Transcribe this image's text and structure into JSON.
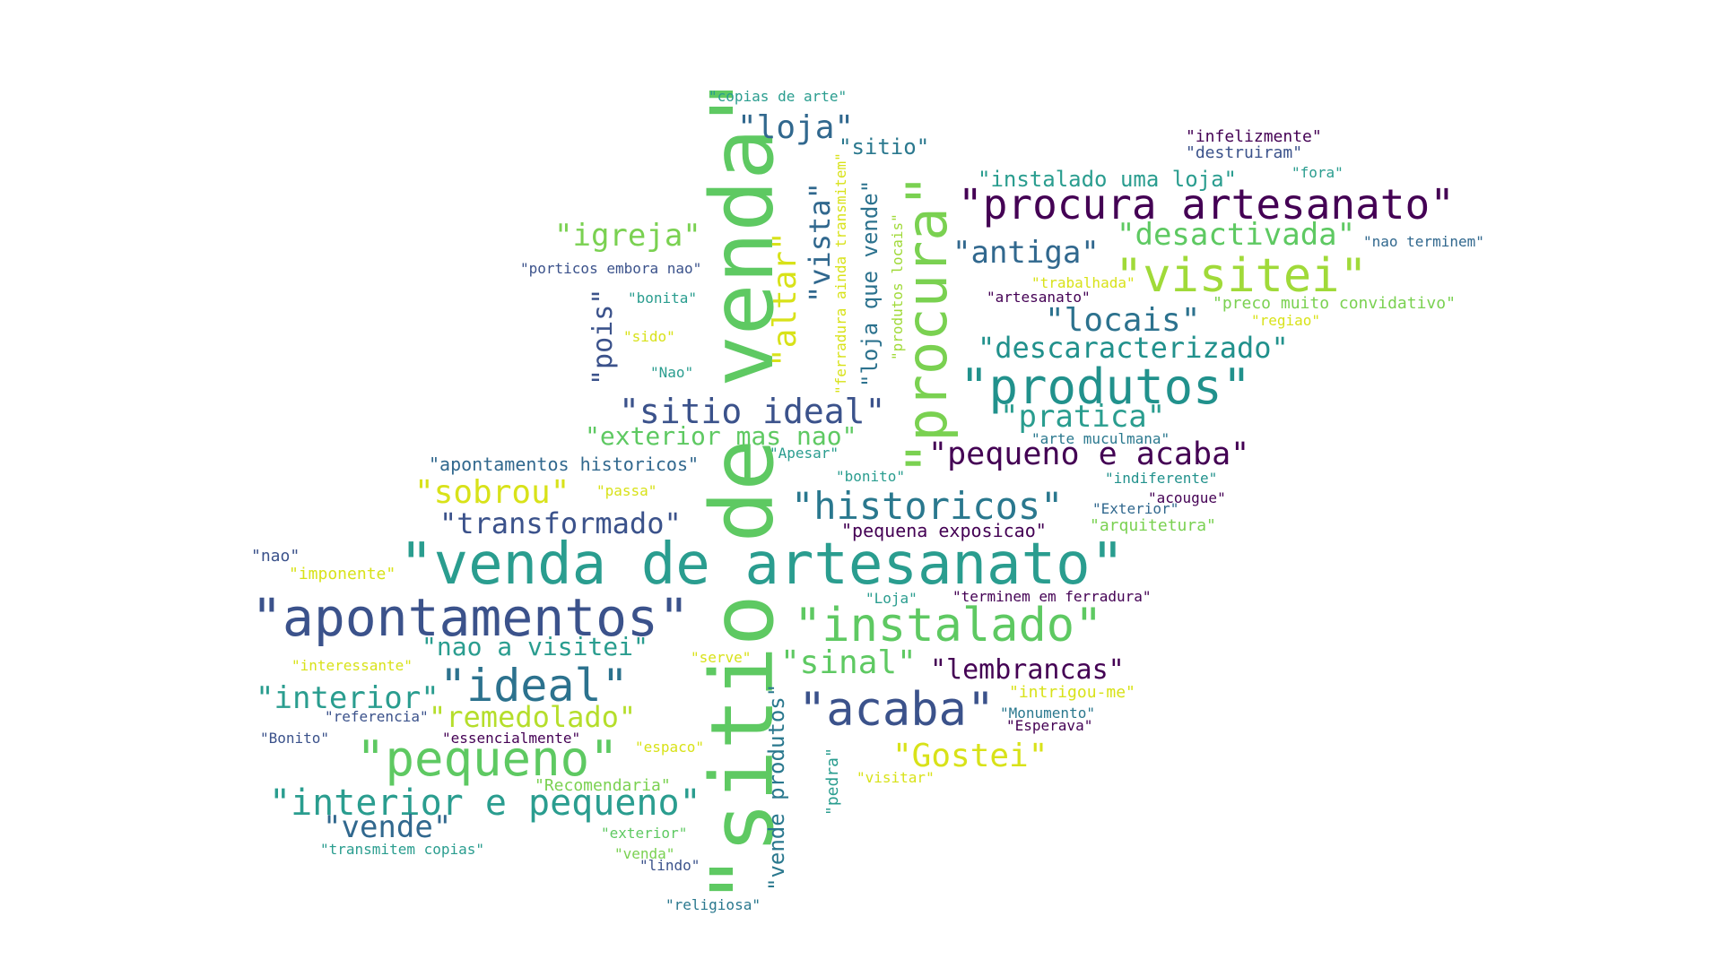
{
  "words": [
    {
      "id": "w1",
      "text": "\"sitio de venda\"",
      "color": "#5ec962"
    },
    {
      "id": "w2",
      "text": "\"venda de artesanato\"",
      "color": "#2a9d8f"
    },
    {
      "id": "w3",
      "text": "\"apontamentos\"",
      "color": "#3b528b"
    },
    {
      "id": "w4",
      "text": "\"procura artesanato\"",
      "color": "#440154"
    },
    {
      "id": "w5",
      "text": "\"procura\"",
      "color": "#7ad151"
    },
    {
      "id": "w6",
      "text": "\"produtos\"",
      "color": "#21918c"
    },
    {
      "id": "w7",
      "text": "\"instalado\"",
      "color": "#5ec962"
    },
    {
      "id": "w8",
      "text": "\"visitei\"",
      "color": "#a0da39"
    },
    {
      "id": "w9",
      "text": "\"acaba\"",
      "color": "#3b528b"
    },
    {
      "id": "w10",
      "text": "\"pequeno\"",
      "color": "#5ec962"
    },
    {
      "id": "w11",
      "text": "\"ideal\"",
      "color": "#2c728e"
    },
    {
      "id": "w12",
      "text": "\"historicos\"",
      "color": "#2a788e"
    },
    {
      "id": "w13",
      "text": "\"interior e pequeno\"",
      "color": "#2a9d8f"
    },
    {
      "id": "w14",
      "text": "\"sitio ideal\"",
      "color": "#3b528b"
    },
    {
      "id": "w15",
      "text": "\"pequeno e acaba\"",
      "color": "#440154"
    },
    {
      "id": "w16",
      "text": "\"loja\"",
      "color": "#31688e"
    },
    {
      "id": "w17",
      "text": "\"Gostei\"",
      "color": "#d8e219"
    },
    {
      "id": "w18",
      "text": "\"locais\"",
      "color": "#2c728e"
    },
    {
      "id": "w19",
      "text": "\"antiga\"",
      "color": "#31688e"
    },
    {
      "id": "w20",
      "text": "\"desactivada\"",
      "color": "#5ec962"
    },
    {
      "id": "w21",
      "text": "\"pratica\"",
      "color": "#2a9d8f"
    },
    {
      "id": "w22",
      "text": "\"sobrou\"",
      "color": "#d8e219"
    },
    {
      "id": "w23",
      "text": "\"igreja\"",
      "color": "#7ad151"
    },
    {
      "id": "w24",
      "text": "\"descaracterizado\"",
      "color": "#21918c"
    },
    {
      "id": "w25",
      "text": "\"transformado\"",
      "color": "#3b528b"
    },
    {
      "id": "w26",
      "text": "\"remedolado\"",
      "color": "#b5de2b"
    },
    {
      "id": "w27",
      "text": "\"interior\"",
      "color": "#2a9d8f"
    },
    {
      "id": "w28",
      "text": "\"sinal\"",
      "color": "#5ec962"
    },
    {
      "id": "w29",
      "text": "\"lembrancas\"",
      "color": "#440154"
    },
    {
      "id": "w30",
      "text": "\"vende\"",
      "color": "#31688e"
    },
    {
      "id": "w31",
      "text": "\"nao a visitei\"",
      "color": "#2a9d8f"
    },
    {
      "id": "w32",
      "text": "\"exterior mas nao\"",
      "color": "#5ec962"
    },
    {
      "id": "w33",
      "text": "\"altar\"",
      "color": "#d8e219"
    },
    {
      "id": "w34",
      "text": "\"vista\"",
      "color": "#31688e"
    },
    {
      "id": "w35",
      "text": "\"pois\"",
      "color": "#3b528b"
    },
    {
      "id": "w36",
      "text": "\"loja que vende\"",
      "color": "#2c728e"
    },
    {
      "id": "w37",
      "text": "\"vende produtos\"",
      "color": "#2a788e"
    },
    {
      "id": "w38",
      "text": "\"instalado uma loja\"",
      "color": "#2a9d8f"
    },
    {
      "id": "w39",
      "text": "\"sitio\"",
      "color": "#2a788e"
    },
    {
      "id": "w40",
      "text": "\"apontamentos historicos\"",
      "color": "#31688e"
    },
    {
      "id": "w41",
      "text": "\"pequena exposicao\"",
      "color": "#440154"
    },
    {
      "id": "w42",
      "text": "\"ferradura ainda transmitem\"",
      "color": "#d8e219"
    },
    {
      "id": "w43",
      "text": "\"produtos locais\"",
      "color": "#a0da39"
    },
    {
      "id": "w44",
      "text": "\"pedra\"",
      "color": "#2a9d8f"
    },
    {
      "id": "w45",
      "text": "\"copias de arte\"",
      "color": "#2a9d8f"
    },
    {
      "id": "w46",
      "text": "\"infelizmente\"",
      "color": "#440154"
    },
    {
      "id": "w47",
      "text": "\"destruiram\"",
      "color": "#3b528b"
    },
    {
      "id": "w48",
      "text": "\"fora\"",
      "color": "#2a9d8f"
    },
    {
      "id": "w49",
      "text": "\"nao terminem\"",
      "color": "#31688e"
    },
    {
      "id": "w50",
      "text": "\"porticos embora nao\"",
      "color": "#3b528b"
    },
    {
      "id": "w51",
      "text": "\"bonita\"",
      "color": "#2a9d8f"
    },
    {
      "id": "w52",
      "text": "\"trabalhada\"",
      "color": "#d8e219"
    },
    {
      "id": "w53",
      "text": "\"artesanato\"",
      "color": "#440154"
    },
    {
      "id": "w54",
      "text": "\"preco muito convidativo\"",
      "color": "#7ad151"
    },
    {
      "id": "w55",
      "text": "\"regiao\"",
      "color": "#d8e219"
    },
    {
      "id": "w56",
      "text": "\"sido\"",
      "color": "#d8e219"
    },
    {
      "id": "w57",
      "text": "\"Nao\"",
      "color": "#2a9d8f"
    },
    {
      "id": "w58",
      "text": "\"arte muculmana\"",
      "color": "#2a788e"
    },
    {
      "id": "w59",
      "text": "\"Apesar\"",
      "color": "#2a9d8f"
    },
    {
      "id": "w60",
      "text": "\"bonito\"",
      "color": "#2a9d8f"
    },
    {
      "id": "w61",
      "text": "\"passa\"",
      "color": "#d8e219"
    },
    {
      "id": "w62",
      "text": "\"indiferente\"",
      "color": "#21918c"
    },
    {
      "id": "w63",
      "text": "\"acougue\"",
      "color": "#440154"
    },
    {
      "id": "w64",
      "text": "\"Exterior\"",
      "color": "#31688e"
    },
    {
      "id": "w65",
      "text": "\"arquitetura\"",
      "color": "#7ad151"
    },
    {
      "id": "w66",
      "text": "\"nao\"",
      "color": "#3b528b"
    },
    {
      "id": "w67",
      "text": "\"imponente\"",
      "color": "#d8e219"
    },
    {
      "id": "w68",
      "text": "\"Loja\"",
      "color": "#2a9d8f"
    },
    {
      "id": "w69",
      "text": "\"terminem em ferradura\"",
      "color": "#440154"
    },
    {
      "id": "w70",
      "text": "\"interessante\"",
      "color": "#d8e219"
    },
    {
      "id": "w71",
      "text": "\"serve\"",
      "color": "#d8e219"
    },
    {
      "id": "w72",
      "text": "\"intrigou-me\"",
      "color": "#d8e219"
    },
    {
      "id": "w73",
      "text": "\"referencia\"",
      "color": "#3b528b"
    },
    {
      "id": "w74",
      "text": "\"Monumento\"",
      "color": "#2a788e"
    },
    {
      "id": "w75",
      "text": "\"Esperava\"",
      "color": "#440154"
    },
    {
      "id": "w76",
      "text": "\"Bonito\"",
      "color": "#3b528b"
    },
    {
      "id": "w77",
      "text": "\"essencialmente\"",
      "color": "#440154"
    },
    {
      "id": "w78",
      "text": "\"espaco\"",
      "color": "#d8e219"
    },
    {
      "id": "w79",
      "text": "\"visitar\"",
      "color": "#d8e219"
    },
    {
      "id": "w80",
      "text": "\"Recomendaria\"",
      "color": "#7ad151"
    },
    {
      "id": "w81",
      "text": "\"exterior\"",
      "color": "#5ec962"
    },
    {
      "id": "w82",
      "text": "\"transmitem copias\"",
      "color": "#2a9d8f"
    },
    {
      "id": "w83",
      "text": "\"venda\"",
      "color": "#7ad151"
    },
    {
      "id": "w84",
      "text": "\"lindo\"",
      "color": "#3b528b"
    },
    {
      "id": "w85",
      "text": "\"religiosa\"",
      "color": "#2a788e"
    }
  ]
}
